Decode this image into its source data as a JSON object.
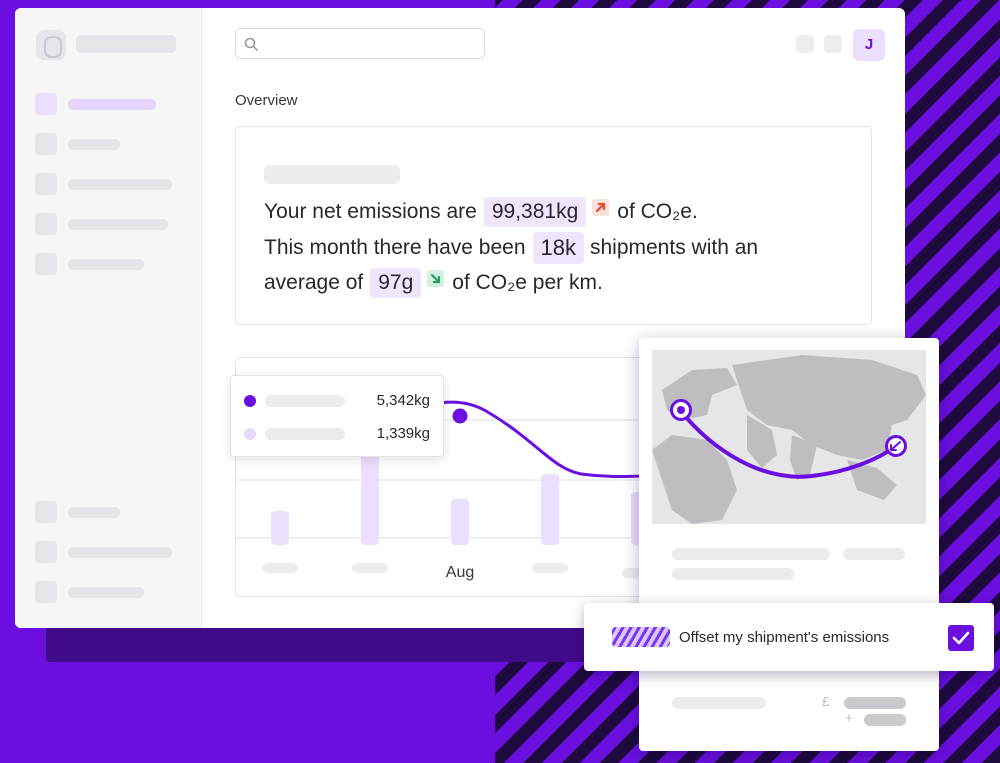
{
  "header": {
    "avatar_initial": "J"
  },
  "overview": {
    "title": "Overview",
    "line1_prefix": "Your net emissions are",
    "net_emissions": "99,381kg",
    "net_emissions_trend": "up",
    "line1_suffix": "of CO₂e.",
    "line2_prefix": "This month there have been",
    "shipments": "18k",
    "line2_suffix": "shipments with an",
    "line3_prefix": "average of",
    "average": "97g",
    "average_trend": "down",
    "line3_suffix": "of CO₂e per km."
  },
  "chart": {
    "tooltip": {
      "value_1": "5,342kg",
      "value_2": "1,339kg"
    },
    "x_label_visible": "Aug"
  },
  "offset": {
    "label": "Offset my shipment's emissions",
    "checked": true
  },
  "pricing": {
    "currency_symbol": "£",
    "plus_symbol": "+"
  },
  "colors": {
    "brand": "#6a0fe0",
    "trend_up": "#e5482a",
    "trend_down": "#1f9d63"
  }
}
